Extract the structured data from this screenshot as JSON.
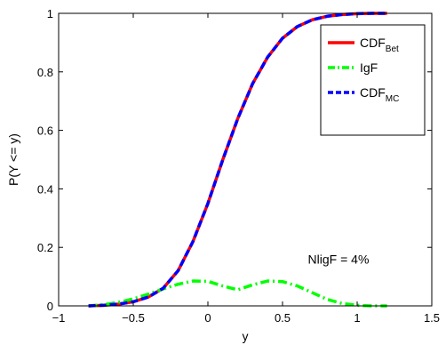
{
  "chart_data": {
    "type": "line",
    "xlabel": "y",
    "ylabel": "P(Y <= y)",
    "xlim": [
      -1,
      1.5
    ],
    "ylim": [
      0,
      1
    ],
    "xticks": [
      -1,
      -0.5,
      0,
      0.5,
      1,
      1.5
    ],
    "xtick_labels": [
      "−1",
      "−0.5",
      "0",
      "0.5",
      "1",
      "1.5"
    ],
    "yticks": [
      0,
      0.2,
      0.4,
      0.6,
      0.8,
      1
    ],
    "ytick_labels": [
      "0",
      "0.2",
      "0.4",
      "0.6",
      "0.8",
      "1"
    ],
    "grid": false,
    "legend_position": "top-right",
    "annotation": "NligF = 4%",
    "annotation_position": [
      0.67,
      0.145
    ],
    "series": [
      {
        "key": "cdf_bet",
        "legend_main": "CDF",
        "legend_sub": "Bet",
        "color": "#ff0000",
        "style": "solid",
        "x": [
          -0.8,
          -0.7,
          -0.6,
          -0.5,
          -0.4,
          -0.3,
          -0.2,
          -0.1,
          0.0,
          0.1,
          0.2,
          0.3,
          0.4,
          0.5,
          0.6,
          0.7,
          0.8,
          0.9,
          1.0,
          1.1,
          1.2
        ],
        "y": [
          0.0,
          0.002,
          0.006,
          0.014,
          0.03,
          0.06,
          0.12,
          0.22,
          0.35,
          0.5,
          0.64,
          0.76,
          0.85,
          0.915,
          0.955,
          0.978,
          0.99,
          0.996,
          0.999,
          1.0,
          1.0
        ]
      },
      {
        "key": "igf",
        "legend_main": "IgF",
        "legend_sub": "",
        "color": "#00ff00",
        "style": "dashdot",
        "x": [
          -0.8,
          -0.7,
          -0.6,
          -0.5,
          -0.4,
          -0.3,
          -0.2,
          -0.1,
          0.0,
          0.1,
          0.2,
          0.3,
          0.4,
          0.5,
          0.6,
          0.7,
          0.8,
          0.9,
          1.0,
          1.1,
          1.2
        ],
        "y": [
          0.0,
          0.004,
          0.012,
          0.024,
          0.04,
          0.058,
          0.074,
          0.085,
          0.084,
          0.068,
          0.055,
          0.072,
          0.085,
          0.083,
          0.068,
          0.045,
          0.022,
          0.008,
          0.002,
          0.0,
          0.0
        ]
      },
      {
        "key": "cdf_mc",
        "legend_main": "CDF",
        "legend_sub": "MC",
        "color": "#0000ff",
        "style": "dashed",
        "x": [
          -0.8,
          -0.7,
          -0.6,
          -0.5,
          -0.4,
          -0.3,
          -0.2,
          -0.1,
          0.0,
          0.1,
          0.2,
          0.3,
          0.4,
          0.5,
          0.6,
          0.7,
          0.8,
          0.9,
          1.0,
          1.1,
          1.2
        ],
        "y": [
          0.0,
          0.002,
          0.006,
          0.014,
          0.03,
          0.06,
          0.12,
          0.22,
          0.35,
          0.5,
          0.64,
          0.76,
          0.85,
          0.915,
          0.955,
          0.978,
          0.99,
          0.996,
          0.999,
          1.0,
          1.0
        ]
      }
    ]
  }
}
